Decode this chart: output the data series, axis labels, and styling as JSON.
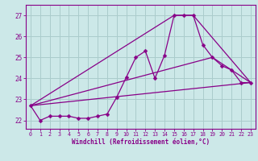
{
  "xlabel": "Windchill (Refroidissement éolien,°C)",
  "background_color": "#cce8e8",
  "grid_color": "#aacccc",
  "line_color": "#880088",
  "x_ticks": [
    0,
    1,
    2,
    3,
    4,
    5,
    6,
    7,
    8,
    9,
    10,
    11,
    12,
    13,
    14,
    15,
    16,
    17,
    18,
    19,
    20,
    21,
    22,
    23
  ],
  "y_ticks": [
    22,
    23,
    24,
    25,
    26,
    27
  ],
  "ylim": [
    21.6,
    27.5
  ],
  "xlim": [
    -0.5,
    23.5
  ],
  "line1_x": [
    0,
    1,
    2,
    3,
    4,
    5,
    6,
    7,
    8,
    9,
    10,
    11,
    12,
    13,
    14,
    15,
    16,
    17,
    18,
    19,
    20,
    21,
    22,
    23
  ],
  "line1_y": [
    22.7,
    22.0,
    22.2,
    22.2,
    22.2,
    22.1,
    22.1,
    22.2,
    22.3,
    23.1,
    24.05,
    25.0,
    25.3,
    24.0,
    25.1,
    27.0,
    27.0,
    27.0,
    25.6,
    25.0,
    24.6,
    24.4,
    23.8,
    23.8
  ],
  "line2_x": [
    0,
    23
  ],
  "line2_y": [
    22.7,
    23.8
  ],
  "line3_x": [
    0,
    15,
    17,
    23
  ],
  "line3_y": [
    22.7,
    27.0,
    27.0,
    23.8
  ],
  "line4_x": [
    0,
    19,
    23
  ],
  "line4_y": [
    22.7,
    25.0,
    23.8
  ]
}
